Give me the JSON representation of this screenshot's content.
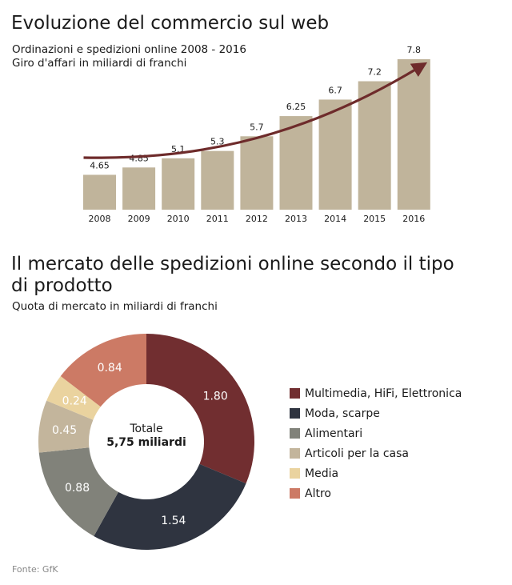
{
  "chart_data": [
    {
      "type": "bar",
      "title": "Evoluzione del commercio sul web",
      "subtitle": "Ordinazioni e spedizioni online 2008 - 2016",
      "ylabel": "Giro d'affari in miliardi di franchi",
      "categories": [
        "2008",
        "2009",
        "2010",
        "2011",
        "2012",
        "2013",
        "2014",
        "2015",
        "2016"
      ],
      "values": [
        4.65,
        4.85,
        5.1,
        5.3,
        5.7,
        6.25,
        6.7,
        7.2,
        7.8
      ],
      "value_labels": [
        "4.65",
        "4.85",
        "5.1",
        "5.3",
        "5.7",
        "6.25",
        "6.7",
        "7.2",
        "7.8"
      ],
      "ylim": [
        3.7,
        7.8
      ],
      "grid": false,
      "colors": {
        "bar": "#c0b49b",
        "arrow": "#6e2b2b"
      }
    },
    {
      "type": "pie",
      "title": "Il mercato delle spedizioni online secondo il tipo di prodotto",
      "subtitle": "Quota di mercato in miliardi di franchi",
      "center_line1": "Totale",
      "center_line2": "5,75 miliardi",
      "legend_position": "right",
      "slices": [
        {
          "label": "Multimedia, HiFi, Elettronica",
          "value": 1.8,
          "display": "1.80",
          "color": "#712e30",
          "text_color": "#ffffff"
        },
        {
          "label": "Moda, scarpe",
          "value": 1.54,
          "display": "1.54",
          "color": "#2f3440",
          "text_color": "#ffffff"
        },
        {
          "label": "Alimentari",
          "value": 0.88,
          "display": "0.88",
          "color": "#81827a",
          "text_color": "#ffffff"
        },
        {
          "label": "Articoli per la casa",
          "value": 0.45,
          "display": "0.45",
          "color": "#c3b59c",
          "text_color": "#ffffff"
        },
        {
          "label": "Media",
          "value": 0.24,
          "display": "0.24",
          "color": "#ead39f",
          "text_color": "#ffffff"
        },
        {
          "label": "Altro",
          "value": 0.84,
          "display": "0.84",
          "color": "#cc7a65",
          "text_color": "#ffffff"
        }
      ]
    }
  ],
  "source": "Fonte: GfK"
}
